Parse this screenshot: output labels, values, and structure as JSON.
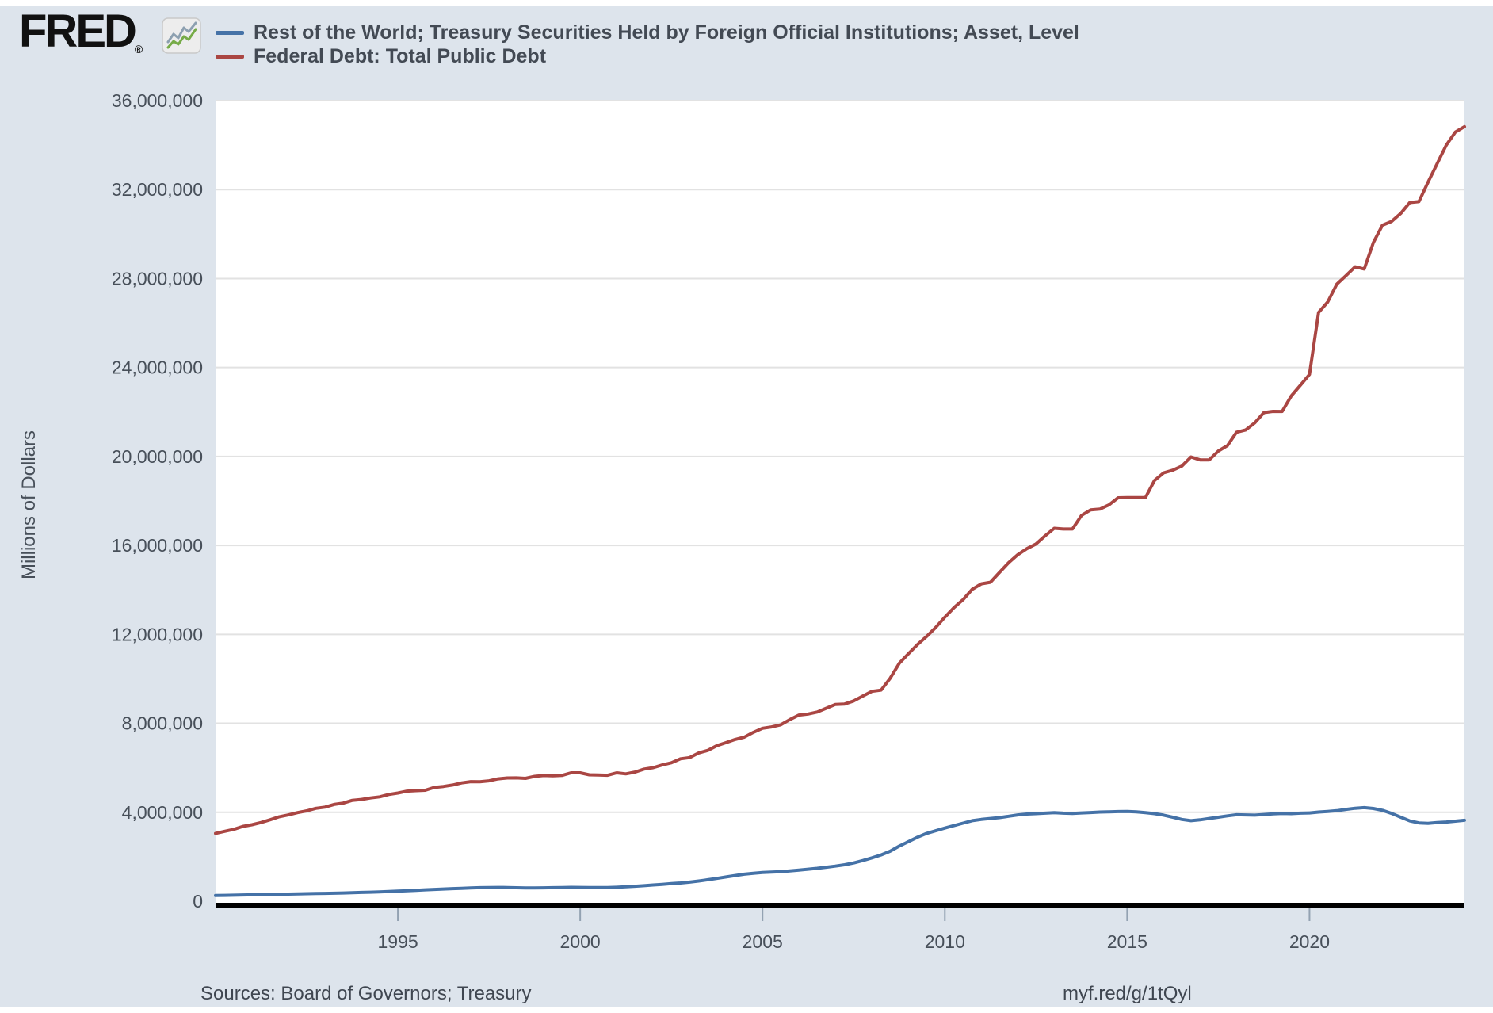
{
  "header": {
    "logo_text": "FRED",
    "registered_mark": "®"
  },
  "footer": {
    "sources": "Sources: Board of Governors; Treasury",
    "link": "myf.red/g/1tQyl"
  },
  "colors": {
    "page_background": "#dde4ec",
    "plot_background": "#ffffff",
    "gridline": "#e2e2e2",
    "axis_line": "#000000",
    "tick_text": "#474f59",
    "legend_text": "#434a54",
    "series_blue": "#4572a7",
    "series_red": "#aa4643",
    "logo_black": "#111111",
    "icon_green": "#76ab47",
    "icon_gray": "#8da0b0"
  },
  "chart_data": {
    "type": "line",
    "title": "",
    "xlabel": "",
    "ylabel": "Millions of Dollars",
    "grid": "horizontal",
    "legend_position": "top-left",
    "xlim": [
      1990,
      2024.25
    ],
    "ylim": [
      0,
      36000000
    ],
    "x_start": 1990,
    "x_step": 0.25,
    "x_ticks": [
      {
        "value": 1995,
        "label": "1995"
      },
      {
        "value": 2000,
        "label": "2000"
      },
      {
        "value": 2005,
        "label": "2005"
      },
      {
        "value": 2010,
        "label": "2010"
      },
      {
        "value": 2015,
        "label": "2015"
      },
      {
        "value": 2020,
        "label": "2020"
      }
    ],
    "y_ticks": [
      {
        "value": 0,
        "label": "0"
      },
      {
        "value": 4000000,
        "label": "4,000,000"
      },
      {
        "value": 8000000,
        "label": "8,000,000"
      },
      {
        "value": 12000000,
        "label": "12,000,000"
      },
      {
        "value": 16000000,
        "label": "16,000,000"
      },
      {
        "value": 20000000,
        "label": "20,000,000"
      },
      {
        "value": 24000000,
        "label": "24,000,000"
      },
      {
        "value": 28000000,
        "label": "28,000,000"
      },
      {
        "value": 32000000,
        "label": "32,000,000"
      },
      {
        "value": 36000000,
        "label": "36,000,000"
      }
    ],
    "series": [
      {
        "name": "Rest of the World; Treasury Securities Held by Foreign Official Institutions; Asset, Level",
        "color": "#4572a7",
        "values": [
          255000,
          262000,
          270000,
          280000,
          290000,
          298000,
          306000,
          315000,
          322000,
          330000,
          338000,
          345000,
          352000,
          360000,
          370000,
          382000,
          394000,
          406000,
          420000,
          435000,
          452000,
          472000,
          492000,
          512000,
          530000,
          548000,
          565000,
          582000,
          596000,
          608000,
          616000,
          620000,
          615000,
          606000,
          598000,
          595000,
          602000,
          610000,
          616000,
          622000,
          620000,
          616000,
          612000,
          614000,
          628000,
          648000,
          672000,
          700000,
          730000,
          760000,
          790000,
          820000,
          860000,
          910000,
          965000,
          1025000,
          1090000,
          1155000,
          1215000,
          1260000,
          1290000,
          1310000,
          1330000,
          1360000,
          1400000,
          1440000,
          1480000,
          1530000,
          1580000,
          1640000,
          1720000,
          1830000,
          1950000,
          2080000,
          2250000,
          2480000,
          2680000,
          2880000,
          3050000,
          3170000,
          3290000,
          3400000,
          3510000,
          3620000,
          3680000,
          3720000,
          3760000,
          3820000,
          3880000,
          3920000,
          3940000,
          3960000,
          3980000,
          3960000,
          3950000,
          3970000,
          3990000,
          4010000,
          4020000,
          4030000,
          4040000,
          4020000,
          3980000,
          3940000,
          3870000,
          3780000,
          3680000,
          3620000,
          3660000,
          3720000,
          3780000,
          3840000,
          3890000,
          3880000,
          3870000,
          3900000,
          3930000,
          3950000,
          3940000,
          3960000,
          3970000,
          4010000,
          4040000,
          4070000,
          4130000,
          4180000,
          4210000,
          4170000,
          4090000,
          3950000,
          3780000,
          3610000,
          3520000,
          3500000,
          3540000,
          3560000,
          3600000,
          3640000
        ]
      },
      {
        "name": "Federal Debt: Total Public Debt",
        "color": "#aa4643",
        "values": [
          3052000,
          3143000,
          3233000,
          3365000,
          3441000,
          3538000,
          3665000,
          3801000,
          3881000,
          3984000,
          4065000,
          4177000,
          4230000,
          4352000,
          4412000,
          4536000,
          4576000,
          4646000,
          4693000,
          4800000,
          4864000,
          4951000,
          4974000,
          4989000,
          5118000,
          5161000,
          5225000,
          5323000,
          5380000,
          5376000,
          5413000,
          5502000,
          5542000,
          5547000,
          5526000,
          5614000,
          5652000,
          5639000,
          5656000,
          5776000,
          5773000,
          5686000,
          5674000,
          5662000,
          5774000,
          5727000,
          5807000,
          5943000,
          6006000,
          6126000,
          6228000,
          6406000,
          6460000,
          6670000,
          6783000,
          6998000,
          7131000,
          7274000,
          7379000,
          7596000,
          7776000,
          7837000,
          7933000,
          8170000,
          8371000,
          8420000,
          8507000,
          8680000,
          8849000,
          8868000,
          9008000,
          9229000,
          9438000,
          9492000,
          10025000,
          10700000,
          11127000,
          11545000,
          11910000,
          12311000,
          12773000,
          13202000,
          13562000,
          14025000,
          14270000,
          14343000,
          14790000,
          15223000,
          15582000,
          15856000,
          16066000,
          16433000,
          16771000,
          16738000,
          16738000,
          17352000,
          17601000,
          17633000,
          17824000,
          18141000,
          18152000,
          18152000,
          18151000,
          18923000,
          19265000,
          19382000,
          19573000,
          19977000,
          19846000,
          19845000,
          20245000,
          20493000,
          21090000,
          21195000,
          21516000,
          21974000,
          22028000,
          22023000,
          22719000,
          23201000,
          23687000,
          26477000,
          26945000,
          27748000,
          28133000,
          28529000,
          28429000,
          29618000,
          30401000,
          30569000,
          30929000,
          31420000,
          31459000,
          32332000,
          33167000,
          34001000,
          34587000,
          34832000
        ]
      }
    ]
  }
}
